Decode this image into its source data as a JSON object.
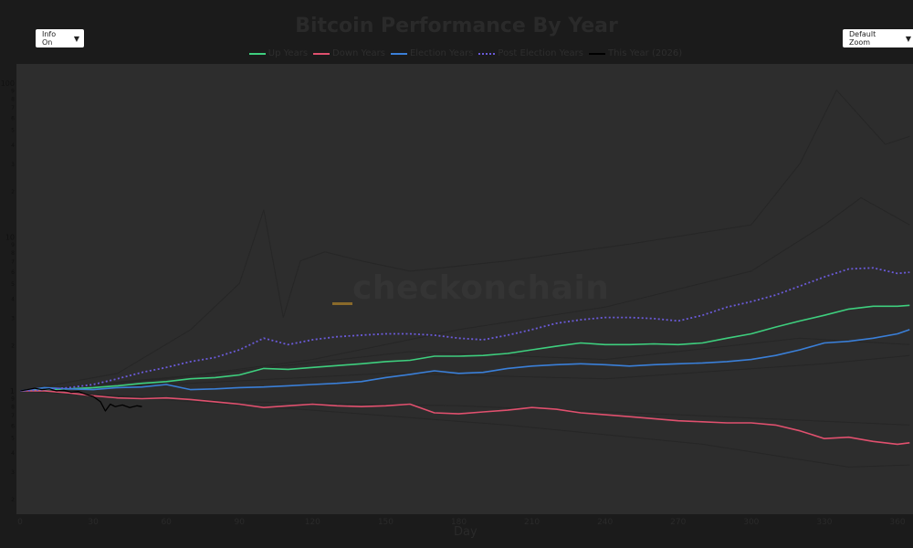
{
  "controls": {
    "info_select": {
      "label": "Info On",
      "arrow": "▼"
    },
    "zoom_select": {
      "label": "Default Zoom",
      "arrow": "▼"
    }
  },
  "chart_data": {
    "type": "line",
    "title": "Bitcoin Performance By Year",
    "xlabel": "Day",
    "ylabel": "",
    "xlim": [
      0,
      365
    ],
    "ylim": [
      0.1,
      130
    ],
    "yscale": "log",
    "grid": false,
    "legend_position": "top-center",
    "x_ticks": [
      0,
      30,
      60,
      90,
      120,
      150,
      180,
      210,
      240,
      270,
      300,
      330,
      360
    ],
    "y_tick_labels": [
      "100",
      "9",
      "8",
      "7",
      "6",
      "5",
      "4",
      "3",
      "2",
      "10",
      "9",
      "8",
      "7",
      "6",
      "5",
      "4",
      "3",
      "2",
      "1",
      "9",
      "8",
      "7",
      "6",
      "5",
      "4",
      "3",
      "2"
    ],
    "watermark": "checkonchain",
    "series": [
      {
        "name": "Up Years",
        "color": "#3ecf7e",
        "style": "solid",
        "x": [
          0,
          10,
          20,
          30,
          40,
          50,
          60,
          70,
          80,
          90,
          100,
          110,
          120,
          130,
          140,
          150,
          160,
          170,
          180,
          190,
          200,
          210,
          220,
          230,
          240,
          250,
          260,
          270,
          280,
          290,
          300,
          310,
          320,
          330,
          340,
          350,
          360,
          365
        ],
        "values": [
          1.0,
          1.02,
          1.03,
          1.05,
          1.08,
          1.12,
          1.15,
          1.2,
          1.22,
          1.27,
          1.4,
          1.38,
          1.42,
          1.46,
          1.5,
          1.55,
          1.58,
          1.68,
          1.68,
          1.7,
          1.75,
          1.85,
          1.95,
          2.05,
          2.0,
          2.0,
          2.02,
          2.0,
          2.05,
          2.2,
          2.35,
          2.6,
          2.85,
          3.1,
          3.4,
          3.55,
          3.55,
          3.6
        ]
      },
      {
        "name": "Down Years",
        "color": "#e0506e",
        "style": "solid",
        "x": [
          0,
          10,
          20,
          30,
          40,
          50,
          60,
          70,
          80,
          90,
          100,
          110,
          120,
          130,
          140,
          150,
          160,
          170,
          180,
          190,
          200,
          210,
          220,
          230,
          240,
          250,
          260,
          270,
          280,
          290,
          300,
          310,
          320,
          330,
          340,
          350,
          360,
          365
        ],
        "values": [
          1.0,
          1.0,
          0.97,
          0.93,
          0.9,
          0.89,
          0.9,
          0.88,
          0.85,
          0.82,
          0.78,
          0.8,
          0.82,
          0.8,
          0.79,
          0.8,
          0.82,
          0.72,
          0.71,
          0.73,
          0.75,
          0.78,
          0.76,
          0.72,
          0.7,
          0.68,
          0.66,
          0.64,
          0.63,
          0.62,
          0.62,
          0.6,
          0.55,
          0.49,
          0.5,
          0.47,
          0.45,
          0.46
        ]
      },
      {
        "name": "Election Years",
        "color": "#3a7fd8",
        "style": "solid",
        "x": [
          0,
          10,
          20,
          30,
          40,
          50,
          60,
          70,
          80,
          90,
          100,
          110,
          120,
          130,
          140,
          150,
          160,
          170,
          180,
          190,
          200,
          210,
          220,
          230,
          240,
          250,
          260,
          270,
          280,
          290,
          300,
          310,
          320,
          330,
          340,
          350,
          360,
          365
        ],
        "values": [
          1.0,
          1.05,
          1.03,
          1.02,
          1.05,
          1.06,
          1.1,
          1.02,
          1.03,
          1.05,
          1.06,
          1.08,
          1.1,
          1.12,
          1.15,
          1.22,
          1.28,
          1.35,
          1.3,
          1.32,
          1.4,
          1.45,
          1.48,
          1.5,
          1.48,
          1.45,
          1.48,
          1.5,
          1.52,
          1.55,
          1.6,
          1.7,
          1.85,
          2.05,
          2.1,
          2.2,
          2.35,
          2.5
        ]
      },
      {
        "name": "Post Election Years",
        "color": "#6a5ad8",
        "style": "dotted",
        "x": [
          0,
          10,
          20,
          30,
          40,
          50,
          60,
          70,
          80,
          90,
          100,
          110,
          120,
          130,
          140,
          150,
          160,
          170,
          180,
          190,
          200,
          210,
          220,
          230,
          240,
          250,
          260,
          270,
          280,
          290,
          300,
          310,
          320,
          330,
          340,
          350,
          360,
          365
        ],
        "values": [
          1.0,
          1.02,
          1.05,
          1.1,
          1.2,
          1.32,
          1.42,
          1.55,
          1.65,
          1.85,
          2.2,
          2.0,
          2.15,
          2.25,
          2.3,
          2.35,
          2.35,
          2.3,
          2.2,
          2.15,
          2.3,
          2.5,
          2.75,
          2.9,
          3.0,
          3.0,
          2.95,
          2.85,
          3.1,
          3.5,
          3.8,
          4.2,
          4.8,
          5.5,
          6.2,
          6.3,
          5.8,
          5.9
        ]
      },
      {
        "name": "This Year (2026)",
        "color": "#000000",
        "style": "solid",
        "x": [
          0,
          3,
          6,
          9,
          12,
          15,
          18,
          21,
          24,
          27,
          30,
          33,
          35,
          37,
          39,
          42,
          45,
          48,
          50
        ],
        "values": [
          1.0,
          1.02,
          1.04,
          1.02,
          1.03,
          1.0,
          1.01,
          0.98,
          0.99,
          0.95,
          0.92,
          0.85,
          0.74,
          0.82,
          0.79,
          0.81,
          0.78,
          0.8,
          0.79
        ]
      }
    ]
  }
}
